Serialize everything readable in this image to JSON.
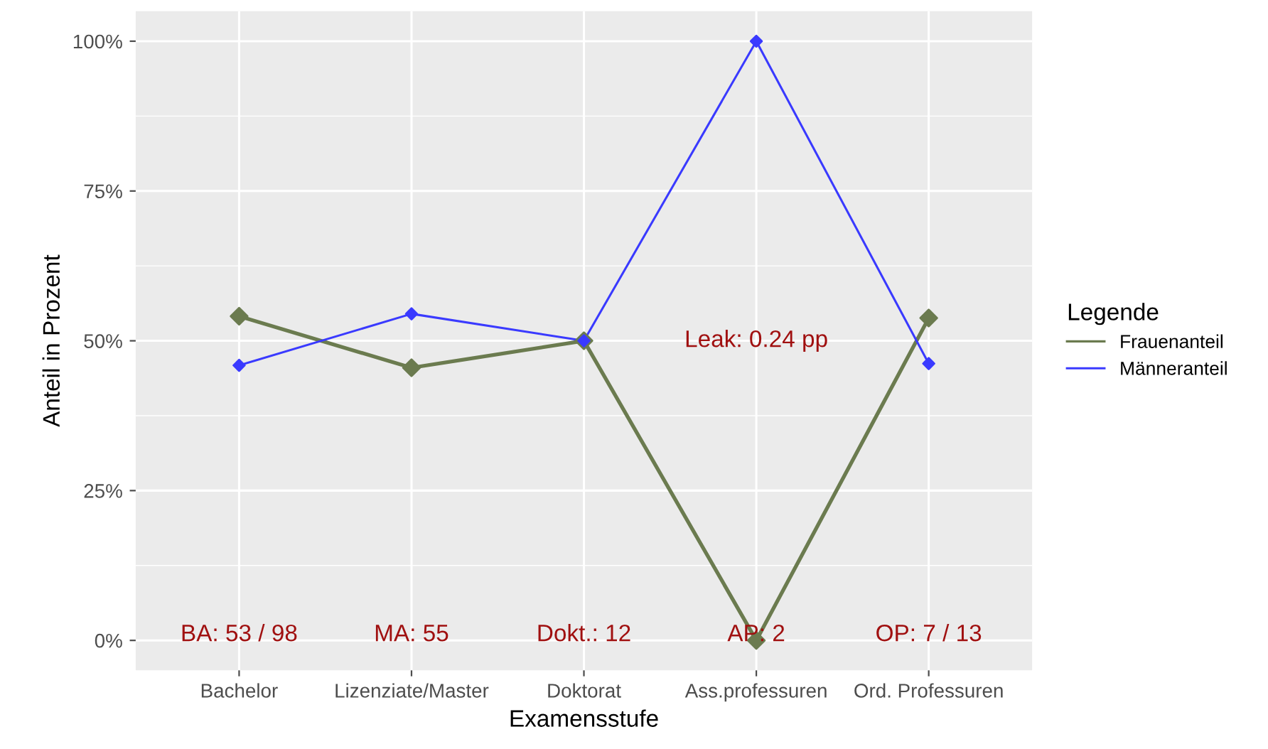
{
  "chart_data": {
    "type": "line",
    "xlabel": "Examensstufe",
    "ylabel": "Anteil in Prozent",
    "legend_title": "Legende",
    "categories": [
      "Bachelor",
      "Lizenziate/Master",
      "Doktorat",
      "Ass.professuren",
      "Ord. Professuren"
    ],
    "series": [
      {
        "name": "Frauenanteil",
        "color": "#6b7b4f",
        "values": [
          54.1,
          45.5,
          50,
          0,
          53.8
        ]
      },
      {
        "name": "Männeranteil",
        "color": "#3a3aff",
        "values": [
          45.9,
          54.5,
          50,
          100,
          46.2
        ]
      }
    ],
    "ylim": [
      -5,
      105
    ],
    "yticks": [
      {
        "value": 0,
        "label": "0%"
      },
      {
        "value": 25,
        "label": "25%"
      },
      {
        "value": 50,
        "label": "50%"
      },
      {
        "value": 75,
        "label": "75%"
      },
      {
        "value": 100,
        "label": "100%"
      }
    ],
    "grid": true,
    "legend": "right",
    "marker": "diamond",
    "line_style": "solid",
    "annotations": [
      "BA: 53 / 98",
      "MA: 55",
      "Dokt.: 12",
      "AP: 2",
      "OP: 7 / 13",
      "Leak: 0.24 pp"
    ]
  }
}
